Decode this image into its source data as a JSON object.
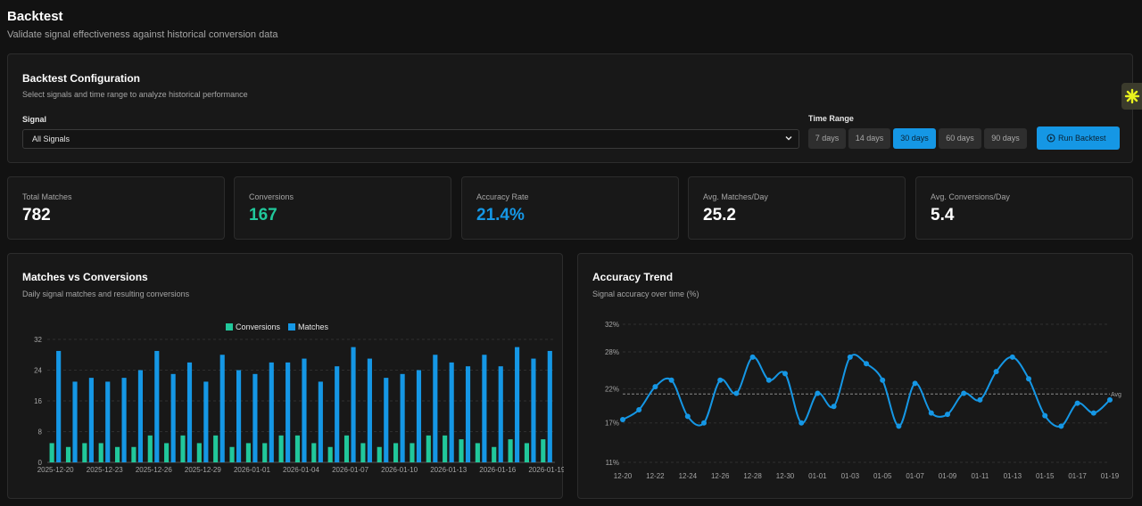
{
  "header": {
    "title": "Backtest",
    "subtitle": "Validate signal effectiveness against historical conversion data"
  },
  "config": {
    "title": "Backtest Configuration",
    "subtitle": "Select signals and time range to analyze historical performance",
    "signal_label": "Signal",
    "signal_value": "All Signals",
    "time_range_label": "Time Range",
    "ranges": [
      "7 days",
      "14 days",
      "30 days",
      "60 days",
      "90 days"
    ],
    "active_range": "30 days",
    "run_label": "Run Backtest"
  },
  "stats": [
    {
      "label": "Total Matches",
      "value": "782"
    },
    {
      "label": "Conversions",
      "value": "167"
    },
    {
      "label": "Accuracy Rate",
      "value": "21.4%"
    },
    {
      "label": "Avg. Matches/Day",
      "value": "25.2"
    },
    {
      "label": "Avg. Conversions/Day",
      "value": "5.4"
    }
  ],
  "colors": {
    "accent": "#1597e5",
    "conversions": "#21c89b",
    "matches": "#1597e5",
    "background": "#121212",
    "card": "#181818"
  },
  "matches_chart": {
    "title": "Matches vs Conversions",
    "subtitle": "Daily signal matches and resulting conversions"
  },
  "accuracy_chart": {
    "title": "Accuracy Trend",
    "subtitle": "Signal accuracy over time (%)",
    "avg_label": "Avg"
  },
  "chart_data": [
    {
      "type": "bar",
      "title": "Matches vs Conversions",
      "legend": "top-center",
      "grid": true,
      "ylim": [
        0,
        32
      ],
      "y_ticks": [
        0,
        8,
        16,
        24,
        32
      ],
      "x_tick_labels": [
        "2025-12-20",
        "2025-12-23",
        "2025-12-26",
        "2025-12-29",
        "2026-01-01",
        "2026-01-04",
        "2026-01-07",
        "2026-01-10",
        "2026-01-13",
        "2026-01-16",
        "2026-01-19"
      ],
      "categories": [
        "2025-12-20",
        "2025-12-21",
        "2025-12-22",
        "2025-12-23",
        "2025-12-24",
        "2025-12-25",
        "2025-12-26",
        "2025-12-27",
        "2025-12-28",
        "2025-12-29",
        "2025-12-30",
        "2025-12-31",
        "2026-01-01",
        "2026-01-02",
        "2026-01-03",
        "2026-01-04",
        "2026-01-05",
        "2026-01-06",
        "2026-01-07",
        "2026-01-08",
        "2026-01-09",
        "2026-01-10",
        "2026-01-11",
        "2026-01-12",
        "2026-01-13",
        "2026-01-14",
        "2026-01-15",
        "2026-01-16",
        "2026-01-17",
        "2026-01-18",
        "2026-01-19"
      ],
      "series": [
        {
          "name": "Conversions",
          "values": [
            5,
            4,
            5,
            5,
            4,
            4,
            7,
            5,
            7,
            5,
            7,
            4,
            5,
            5,
            7,
            7,
            5,
            4,
            7,
            5,
            4,
            5,
            5,
            7,
            7,
            6,
            5,
            4,
            6,
            5,
            6
          ]
        },
        {
          "name": "Matches",
          "values": [
            29,
            21,
            22,
            21,
            22,
            24,
            29,
            23,
            26,
            21,
            28,
            24,
            23,
            26,
            26,
            27,
            21,
            25,
            30,
            27,
            22,
            23,
            24,
            28,
            26,
            25,
            28,
            25,
            30,
            27,
            29
          ]
        }
      ]
    },
    {
      "type": "line",
      "title": "Accuracy Trend",
      "grid": true,
      "ylim": [
        11,
        32
      ],
      "y_ticks": [
        "32%",
        "28%",
        "22%",
        "17%",
        "11%"
      ],
      "y_tick_values": [
        32,
        27.8,
        22.2,
        17,
        11
      ],
      "average": 21.4,
      "x_tick_labels": [
        "12-20",
        "12-22",
        "12-24",
        "12-26",
        "12-28",
        "12-30",
        "01-01",
        "01-03",
        "01-05",
        "01-07",
        "01-09",
        "01-11",
        "01-13",
        "01-15",
        "01-17",
        "01-19"
      ],
      "x": [
        "12-20",
        "12-21",
        "12-22",
        "12-23",
        "12-24",
        "12-25",
        "12-26",
        "12-27",
        "12-28",
        "12-29",
        "12-30",
        "12-31",
        "01-01",
        "01-02",
        "01-03",
        "01-04",
        "01-05",
        "01-06",
        "01-07",
        "01-08",
        "01-09",
        "01-10",
        "01-11",
        "01-12",
        "01-13",
        "01-14",
        "01-15",
        "01-16",
        "01-17",
        "01-18",
        "01-19"
      ],
      "series": [
        {
          "values": [
            17.5,
            19,
            22.5,
            23.5,
            18,
            17,
            23.5,
            21.5,
            27,
            23.5,
            24.5,
            17,
            21.5,
            19.5,
            27,
            26,
            23.5,
            16.5,
            23,
            18.5,
            18.3,
            21.5,
            20.5,
            24.8,
            27,
            23.7,
            18.1,
            16.5,
            20,
            18.5,
            20.5
          ]
        }
      ]
    }
  ]
}
